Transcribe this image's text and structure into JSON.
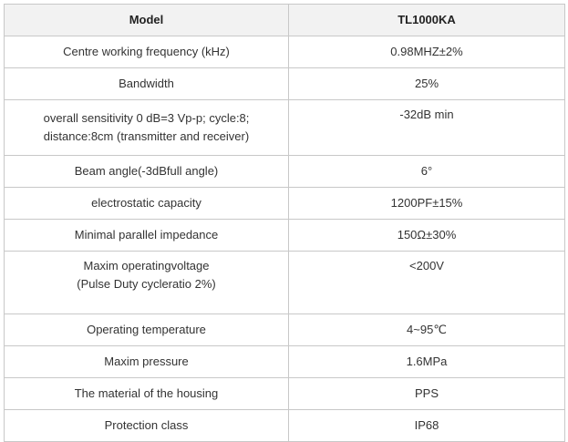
{
  "table": {
    "header": {
      "label": "Model",
      "value": "TL1000KA"
    },
    "rows": [
      {
        "label": "Centre working frequency (kHz)",
        "value": "0.98MHZ±2%"
      },
      {
        "label": "Bandwidth",
        "value": "25%"
      },
      {
        "label": "overall sensitivity  0 dB=3 Vp-p; cycle:8;\ndistance:8cm (transmitter and receiver)",
        "value": "-32dB min"
      },
      {
        "label": "Beam angle(-3dBfull angle)",
        "value": "6°"
      },
      {
        "label": "electrostatic capacity",
        "value": "1200PF±15%"
      },
      {
        "label": "Minimal parallel impedance",
        "value": "150Ω±30%"
      },
      {
        "label": "Maxim operatingvoltage\n(Pulse Duty cycleratio 2%)",
        "value": "<200V"
      },
      {
        "label": "Operating temperature",
        "value": "4~95℃"
      },
      {
        "label": "Maxim pressure",
        "value": "1.6MPa"
      },
      {
        "label": "The material of the housing",
        "value": "PPS"
      },
      {
        "label": "Protection class",
        "value": "IP68"
      }
    ]
  }
}
